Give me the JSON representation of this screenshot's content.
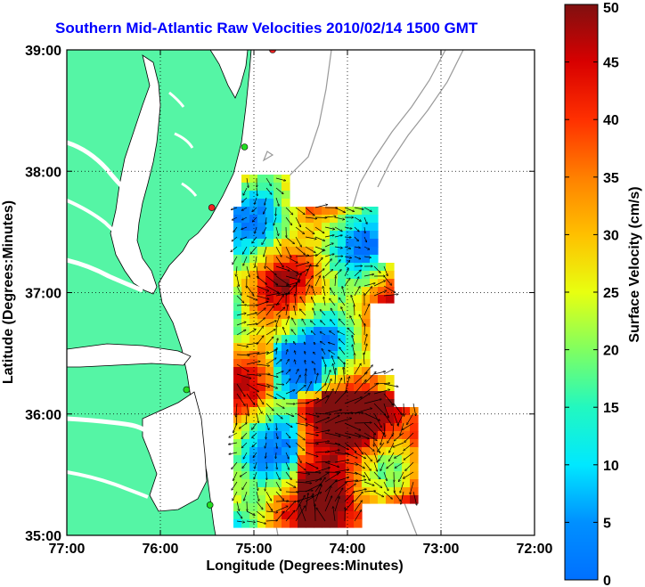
{
  "title": "Southern Mid-Atlantic Raw Velocities 2010/02/14 1500 GMT",
  "x_axis": {
    "label": "Longitude (Degrees:Minutes)",
    "ticks": [
      "77:00",
      "76:00",
      "75:00",
      "74:00",
      "73:00",
      "72:00"
    ]
  },
  "y_axis": {
    "label": "Latitude (Degrees:Minutes)",
    "ticks": [
      "39:00",
      "38:00",
      "37:00",
      "36:00",
      "35:00"
    ]
  },
  "colorbar": {
    "label": "Surface Velocity (cm/s)",
    "ticks": [
      "0",
      "5",
      "10",
      "15",
      "20",
      "25",
      "30",
      "35",
      "40",
      "45",
      "50"
    ],
    "min": 0,
    "max": 50
  },
  "colors": {
    "land": "#55f5a5",
    "coast": "#000000",
    "bathymetry": "#999999",
    "grid": "#000000",
    "station_active": "#22dd22",
    "station_inactive": "#ee2222",
    "arrow": "#000000"
  },
  "map_extent": {
    "lon": [
      -77,
      -72
    ],
    "lat": [
      35,
      39
    ]
  },
  "stations": [
    {
      "status": "inactive",
      "lon": -74.8,
      "lat": 39.0
    },
    {
      "status": "active",
      "lon": -75.1,
      "lat": 38.2
    },
    {
      "status": "inactive",
      "lon": -75.45,
      "lat": 37.7
    },
    {
      "status": "active",
      "lon": -75.72,
      "lat": 36.2
    },
    {
      "status": "active",
      "lon": -75.47,
      "lat": 35.25
    }
  ]
}
